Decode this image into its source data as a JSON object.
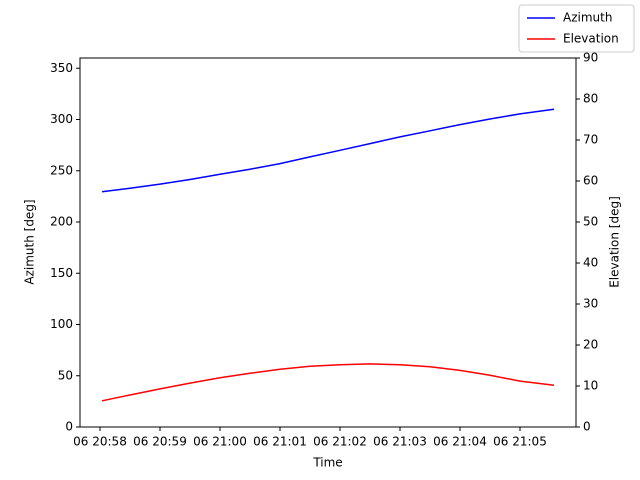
{
  "chart_data": {
    "type": "line",
    "xlabel": "Time",
    "ylabel": "Azimuth [deg]",
    "y2label": "Elevation [deg]",
    "x": [
      "20:58:02",
      "20:58:30",
      "20:59:00",
      "20:59:30",
      "21:00:00",
      "21:00:30",
      "21:01:00",
      "21:01:30",
      "21:02:00",
      "21:02:30",
      "21:03:00",
      "21:03:30",
      "21:04:00",
      "21:04:30",
      "21:05:00",
      "21:05:34"
    ],
    "series": [
      {
        "name": "Azimuth",
        "color": "#0000ff",
        "values": [
          229.5,
          233,
          237,
          241.5,
          246.5,
          251.5,
          257,
          263.5,
          270,
          276.5,
          283,
          289,
          295,
          300.5,
          305.5,
          310
        ]
      },
      {
        "name": "Elevation",
        "color": "#ff0000",
        "axis": "y2",
        "values": [
          6.4,
          7.8,
          9.3,
          10.7,
          12.0,
          13.1,
          14.1,
          14.8,
          15.2,
          15.4,
          15.2,
          14.7,
          13.8,
          12.6,
          11.2,
          10.2
        ]
      }
    ],
    "xlim": [
      "20:57:40",
      "21:05:56"
    ],
    "xticks": [
      {
        "value": "20:58:00",
        "label": "06 20:58"
      },
      {
        "value": "20:59:00",
        "label": "06 20:59"
      },
      {
        "value": "21:00:00",
        "label": "06 21:00"
      },
      {
        "value": "21:01:00",
        "label": "06 21:01"
      },
      {
        "value": "21:02:00",
        "label": "06 21:02"
      },
      {
        "value": "21:03:00",
        "label": "06 21:03"
      },
      {
        "value": "21:04:00",
        "label": "06 21:04"
      },
      {
        "value": "21:05:00",
        "label": "06 21:05"
      }
    ],
    "ylim": [
      0,
      360
    ],
    "yticks": [
      0,
      50,
      100,
      150,
      200,
      250,
      300,
      350
    ],
    "y2lim": [
      0,
      90
    ],
    "y2ticks": [
      0,
      10,
      20,
      30,
      40,
      50,
      60,
      70,
      80,
      90
    ],
    "grid": false,
    "legend": "upper right"
  }
}
